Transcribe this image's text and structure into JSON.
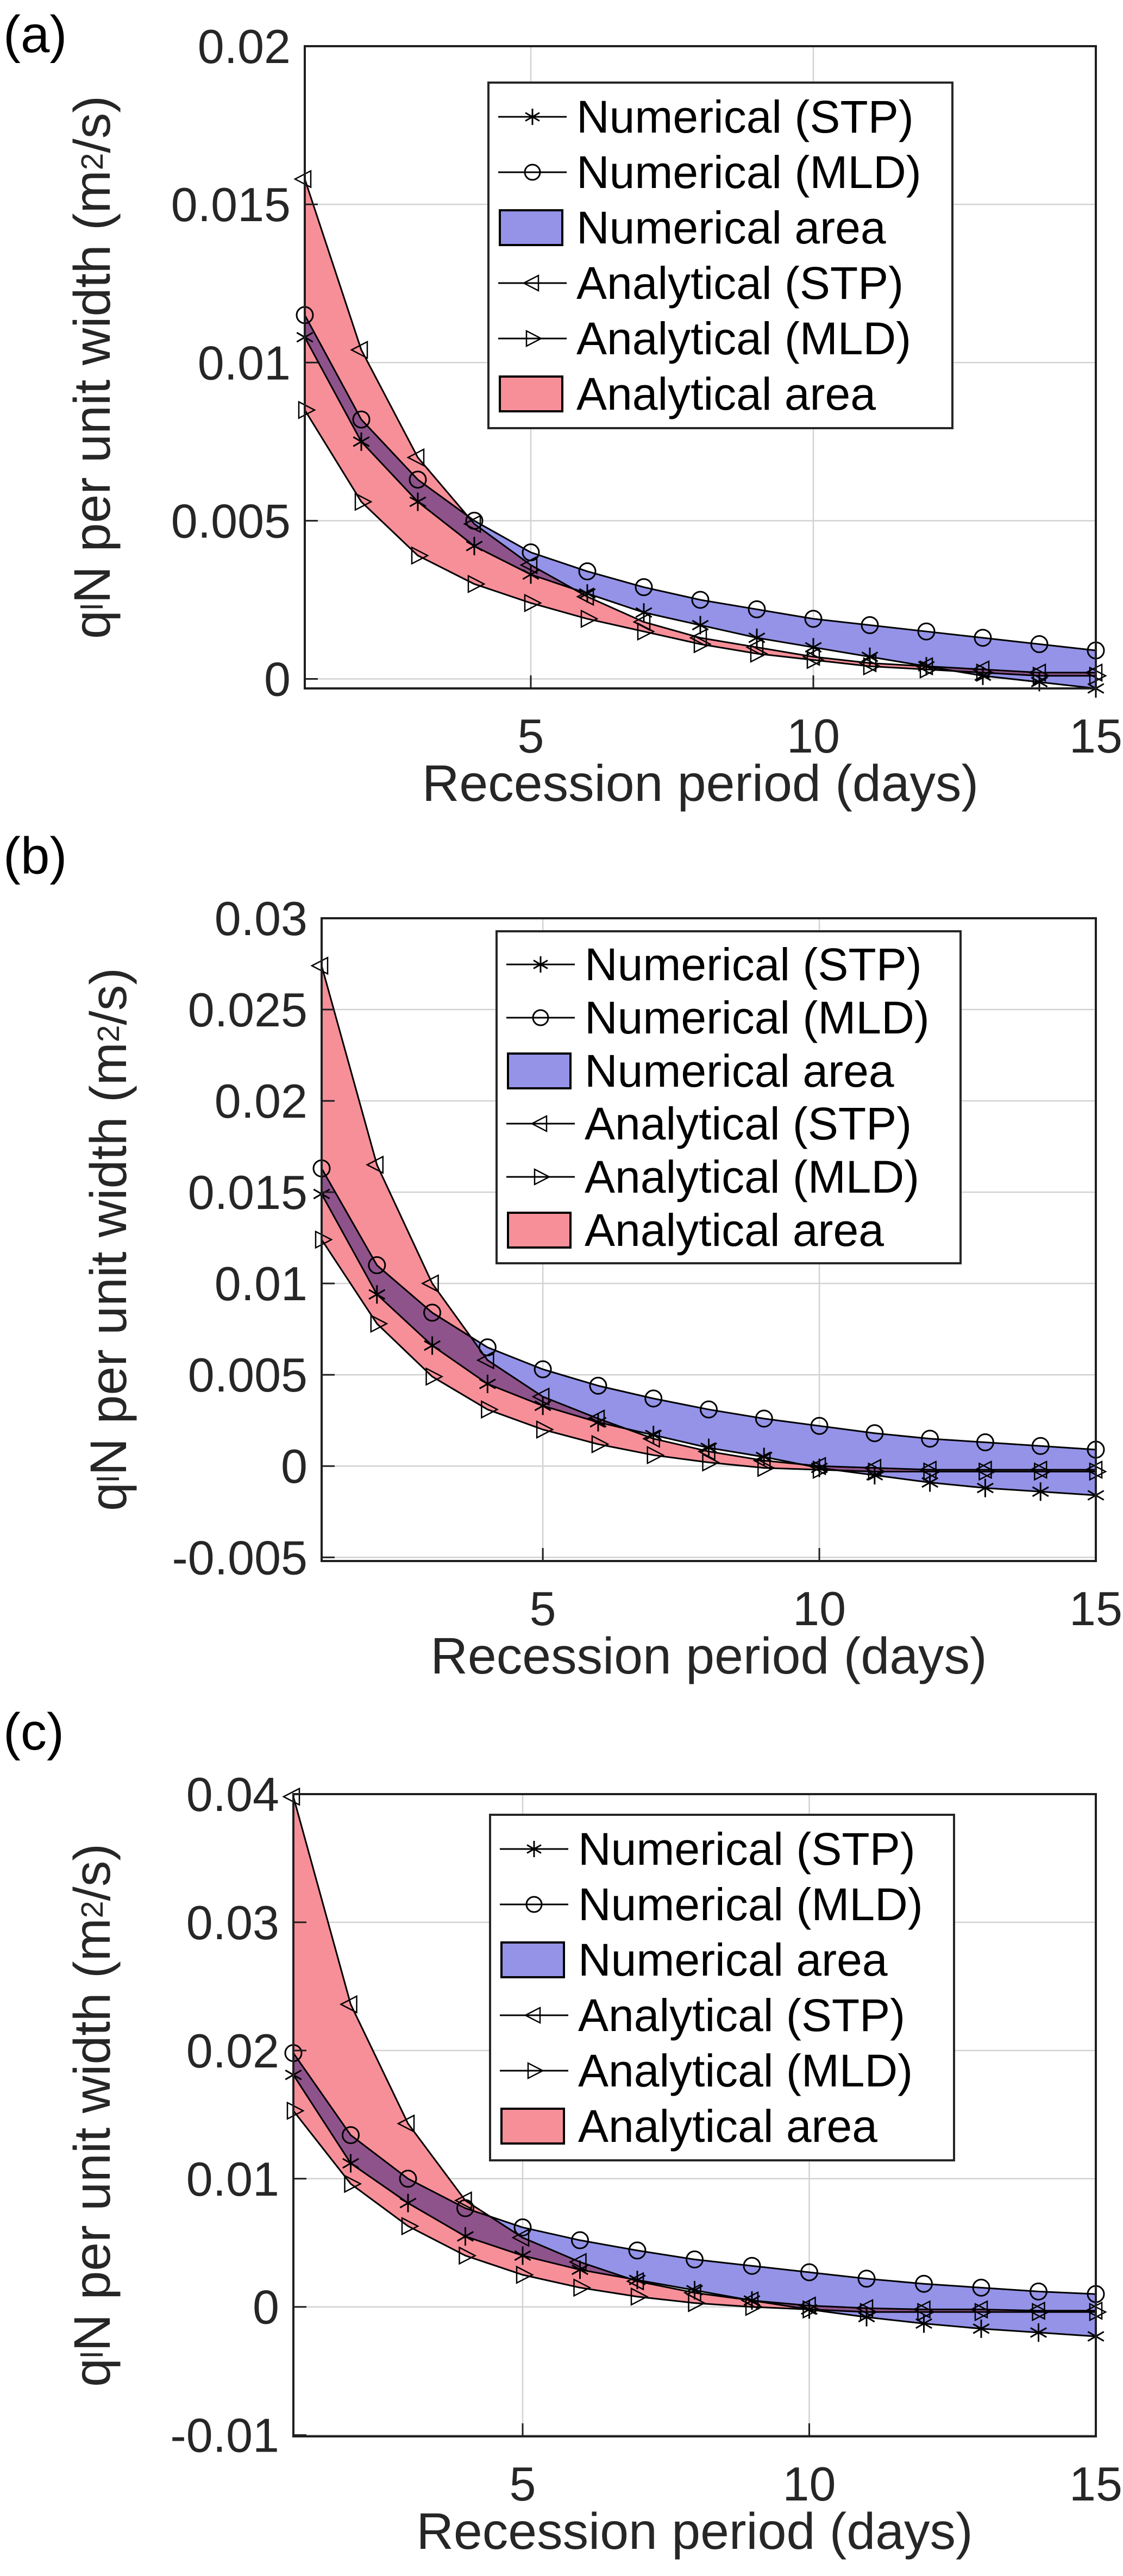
{
  "figure": {
    "shared": {
      "xlabel": "Recession period (days)",
      "ylabel": {
        "base": "q",
        "sub": "l",
        "mid": "N per unit width (m",
        "sup": "2",
        "end": "/s)"
      }
    },
    "legend": {
      "position": "upper right",
      "items": [
        {
          "label": "Numerical (STP)",
          "icon": "line-asterisk"
        },
        {
          "label": "Numerical (MLD)",
          "icon": "line-circle"
        },
        {
          "label": "Numerical area",
          "icon": "swatch",
          "color": "#9493e8"
        },
        {
          "label": "Analytical (STP)",
          "icon": "line-triangle-left"
        },
        {
          "label": "Analytical (MLD)",
          "icon": "line-triangle-right"
        },
        {
          "label": "Analytical area",
          "icon": "swatch",
          "color": "#f78f99"
        }
      ]
    },
    "colors": {
      "numerical_area": "#9493e8",
      "analytical_area": "#f78f99",
      "line": "#000000",
      "grid": "#d2d2d2",
      "axis": "#1f1f1f",
      "tick_text": "#262626"
    },
    "panels": [
      {
        "label": "(a)",
        "chart_data": {
          "type": "line",
          "x": [
            1,
            2,
            3,
            4,
            5,
            6,
            7,
            8,
            9,
            10,
            11,
            12,
            13,
            14,
            15
          ],
          "series": [
            {
              "name": "Numerical (STP)",
              "marker": "asterisk",
              "values": [
                0.0108,
                0.0075,
                0.0056,
                0.0042,
                0.0033,
                0.0027,
                0.0021,
                0.0017,
                0.0013,
                0.001,
                0.0007,
                0.0004,
                0.0001,
                -0.0001,
                -0.0003
              ]
            },
            {
              "name": "Numerical (MLD)",
              "marker": "circle",
              "values": [
                0.0115,
                0.0082,
                0.0063,
                0.005,
                0.004,
                0.0034,
                0.0029,
                0.0025,
                0.0022,
                0.0019,
                0.0017,
                0.0015,
                0.0013,
                0.0011,
                0.0009
              ]
            },
            {
              "name": "Analytical (STP)",
              "marker": "triangle-left",
              "values": [
                0.0158,
                0.0104,
                0.007,
                0.0049,
                0.0036,
                0.0026,
                0.0018,
                0.0013,
                0.001,
                0.0007,
                0.0005,
                0.0004,
                0.0003,
                0.0002,
                0.0002
              ]
            },
            {
              "name": "Analytical (MLD)",
              "marker": "triangle-right",
              "values": [
                0.0085,
                0.0056,
                0.0039,
                0.003,
                0.0024,
                0.0019,
                0.0015,
                0.0011,
                0.0008,
                0.0006,
                0.0004,
                0.0003,
                0.0002,
                0.0001,
                0.0001
              ]
            }
          ],
          "areas": [
            {
              "name": "Analytical area",
              "upper": "Analytical (STP)",
              "lower": "Analytical (MLD)",
              "color": "#f78f99"
            },
            {
              "name": "Numerical area",
              "upper": "Numerical (MLD)",
              "lower": "Numerical (STP)",
              "color": "#9493e8"
            }
          ],
          "xlabel": "Recession period (days)",
          "ylabel": "qlN per unit width (m2/s)",
          "xlim": [
            1,
            15
          ],
          "ylim": [
            -0.0003,
            0.02
          ],
          "xticks": [
            5,
            10,
            15
          ],
          "xticklabels": [
            "5",
            "10",
            "15"
          ],
          "yticks": [
            0.02,
            0.015,
            0.01,
            0.005,
            0
          ],
          "yticklabels": [
            "0.02",
            "0.015",
            "0.01",
            "0.005",
            "0"
          ],
          "grid": true,
          "legend_position": "upper right"
        }
      },
      {
        "label": "(b)",
        "chart_data": {
          "type": "line",
          "x": [
            1,
            2,
            3,
            4,
            5,
            6,
            7,
            8,
            9,
            10,
            11,
            12,
            13,
            14,
            15
          ],
          "series": [
            {
              "name": "Numerical (STP)",
              "marker": "asterisk",
              "values": [
                0.0149,
                0.0094,
                0.0066,
                0.0045,
                0.0033,
                0.0024,
                0.0017,
                0.001,
                0.0005,
                -0.0001,
                -0.0005,
                -0.0009,
                -0.0012,
                -0.0014,
                -0.0016
              ]
            },
            {
              "name": "Numerical (MLD)",
              "marker": "circle",
              "values": [
                0.0163,
                0.011,
                0.0084,
                0.0065,
                0.0053,
                0.0044,
                0.0037,
                0.0031,
                0.0026,
                0.0022,
                0.0018,
                0.0015,
                0.0013,
                0.0011,
                0.0009
              ]
            },
            {
              "name": "Analytical (STP)",
              "marker": "triangle-left",
              "values": [
                0.0274,
                0.0165,
                0.01,
                0.0058,
                0.0038,
                0.0026,
                0.0015,
                0.0008,
                0.0003,
                0.0,
                -0.0001,
                -0.0002,
                -0.0002,
                -0.0002,
                -0.0002
              ]
            },
            {
              "name": "Analytical (MLD)",
              "marker": "triangle-right",
              "values": [
                0.0124,
                0.0078,
                0.0049,
                0.0031,
                0.002,
                0.0012,
                0.0006,
                0.0002,
                -0.0001,
                -0.0002,
                -0.0003,
                -0.0003,
                -0.0003,
                -0.0003,
                -0.0003
              ]
            }
          ],
          "areas": [
            {
              "name": "Analytical area",
              "upper": "Analytical (STP)",
              "lower": "Analytical (MLD)",
              "color": "#f78f99"
            },
            {
              "name": "Numerical area",
              "upper": "Numerical (MLD)",
              "lower": "Numerical (STP)",
              "color": "#9493e8"
            }
          ],
          "xlabel": "Recession period (days)",
          "ylabel": "qlN per unit width (m2/s)",
          "xlim": [
            1,
            15
          ],
          "ylim": [
            -0.0052,
            0.03
          ],
          "xticks": [
            5,
            10,
            15
          ],
          "xticklabels": [
            "5",
            "10",
            "15"
          ],
          "yticks": [
            0.03,
            0.025,
            0.02,
            0.015,
            0.01,
            0.005,
            0,
            -0.005
          ],
          "yticklabels": [
            "0.03",
            "0.025",
            "0.02",
            "0.015",
            "0.01",
            "0.005",
            "0",
            "-0.005"
          ],
          "grid": true,
          "legend_position": "upper right"
        }
      },
      {
        "label": "(c)",
        "chart_data": {
          "type": "line",
          "x": [
            1,
            2,
            3,
            4,
            5,
            6,
            7,
            8,
            9,
            10,
            11,
            12,
            13,
            14,
            15
          ],
          "series": [
            {
              "name": "Numerical (STP)",
              "marker": "asterisk",
              "values": [
                0.0181,
                0.0112,
                0.0081,
                0.0055,
                0.004,
                0.0029,
                0.0021,
                0.0013,
                0.0005,
                -0.0002,
                -0.0008,
                -0.0013,
                -0.0017,
                -0.002,
                -0.0023
              ]
            },
            {
              "name": "Numerical (MLD)",
              "marker": "circle",
              "values": [
                0.0198,
                0.0134,
                0.01,
                0.0077,
                0.0062,
                0.0052,
                0.0044,
                0.0037,
                0.0032,
                0.0027,
                0.0022,
                0.0018,
                0.0015,
                0.0012,
                0.001
              ]
            },
            {
              "name": "Analytical (STP)",
              "marker": "triangle-left",
              "values": [
                0.0398,
                0.0236,
                0.0143,
                0.0083,
                0.0054,
                0.0035,
                0.002,
                0.0011,
                0.0005,
                0.0001,
                -0.0001,
                -0.0002,
                -0.0002,
                -0.0003,
                -0.0003
              ]
            },
            {
              "name": "Analytical (MLD)",
              "marker": "triangle-right",
              "values": [
                0.0153,
                0.0096,
                0.0063,
                0.004,
                0.0025,
                0.0015,
                0.0008,
                0.0003,
                0.0,
                -0.0002,
                -0.0004,
                -0.0004,
                -0.0004,
                -0.0004,
                -0.0004
              ]
            }
          ],
          "areas": [
            {
              "name": "Analytical area",
              "upper": "Analytical (STP)",
              "lower": "Analytical (MLD)",
              "color": "#f78f99"
            },
            {
              "name": "Numerical area",
              "upper": "Numerical (MLD)",
              "lower": "Numerical (STP)",
              "color": "#9493e8"
            }
          ],
          "xlabel": "Recession period (days)",
          "ylabel": "qlN per unit width (m2/s)",
          "xlim": [
            1,
            15
          ],
          "ylim": [
            -0.0101,
            0.04
          ],
          "xticks": [
            5,
            10,
            15
          ],
          "xticklabels": [
            "5",
            "10",
            "15"
          ],
          "yticks": [
            0.04,
            0.03,
            0.02,
            0.01,
            0,
            -0.01
          ],
          "yticklabels": [
            "0.04",
            "0.03",
            "0.02",
            "0.01",
            "0",
            "-0.01"
          ],
          "grid": true,
          "legend_position": "upper right"
        }
      }
    ]
  }
}
